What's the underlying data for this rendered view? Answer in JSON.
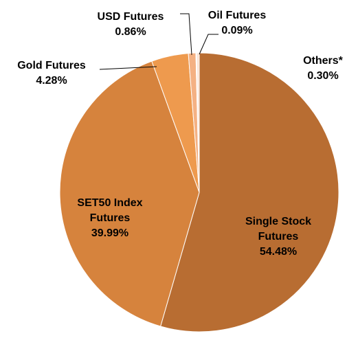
{
  "chart_data": {
    "type": "pie",
    "categories": [
      "Single Stock Futures",
      "SET50 Index Futures",
      "Gold Futures",
      "USD Futures",
      "Oil Futures",
      "Others*"
    ],
    "values": [
      54.48,
      39.99,
      4.28,
      0.86,
      0.09,
      0.3
    ],
    "value_labels": [
      "54.48%",
      "39.99%",
      "4.28%",
      "0.86%",
      "0.09%",
      "0.30%"
    ],
    "colors": [
      "#b86d32",
      "#d6833d",
      "#ee9a4e",
      "#f4b183",
      "#f8cbad",
      "#fbe3d3"
    ]
  }
}
